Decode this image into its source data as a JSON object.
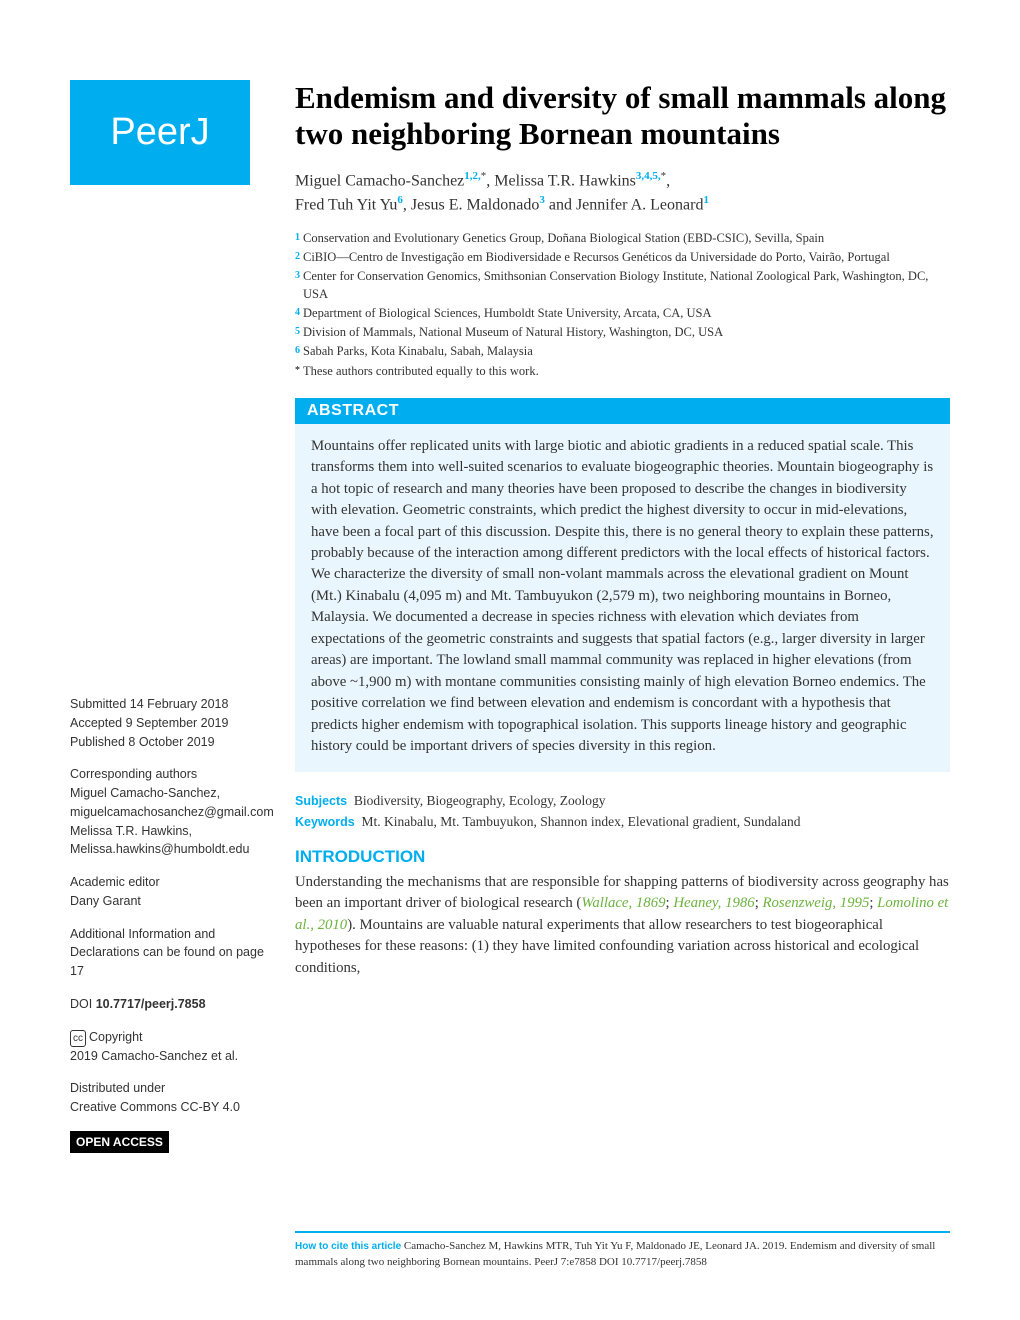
{
  "logo_text": "PeerJ",
  "title": "Endemism and diversity of small mammals along two neighboring Bornean mountains",
  "authors": [
    {
      "name": "Miguel Camacho-Sanchez",
      "sup": "1,2,",
      "star": true,
      "trailing": ", "
    },
    {
      "name": "Melissa T.R. Hawkins",
      "sup": "3,4,5,",
      "star": true,
      "trailing": ","
    },
    {
      "name": "Fred Tuh Yit Yu",
      "sup": "6",
      "star": false,
      "trailing": ", "
    },
    {
      "name": "Jesus E. Maldonado",
      "sup": "3",
      "star": false,
      "trailing": " and "
    },
    {
      "name": "Jennifer A. Leonard",
      "sup": "1",
      "star": false,
      "trailing": ""
    }
  ],
  "affiliations": [
    {
      "num": "1",
      "text": "Conservation and Evolutionary Genetics Group, Doñana Biological Station (EBD-CSIC), Sevilla, Spain"
    },
    {
      "num": "2",
      "text": "CiBIO—Centro de Investigação em Biodiversidade e Recursos Genéticos da Universidade do Porto, Vairão, Portugal"
    },
    {
      "num": "3",
      "text": "Center for Conservation Genomics, Smithsonian Conservation Biology Institute, National Zoological Park, Washington, DC, USA"
    },
    {
      "num": "4",
      "text": "Department of Biological Sciences, Humboldt State University, Arcata, CA, USA"
    },
    {
      "num": "5",
      "text": "Division of Mammals, National Museum of Natural History, Washington, DC, USA"
    },
    {
      "num": "6",
      "text": "Sabah Parks, Kota Kinabalu, Sabah, Malaysia"
    },
    {
      "num": "*",
      "text": "These authors contributed equally to this work."
    }
  ],
  "abstract_label": "ABSTRACT",
  "abstract_text": "Mountains offer replicated units with large biotic and abiotic gradients in a reduced spatial scale. This transforms them into well-suited scenarios to evaluate biogeographic theories. Mountain biogeography is a hot topic of research and many theories have been proposed to describe the changes in biodiversity with elevation. Geometric constraints, which predict the highest diversity to occur in mid-elevations, have been a focal part of this discussion. Despite this, there is no general theory to explain these patterns, probably because of the interaction among different predictors with the local effects of historical factors. We characterize the diversity of small non-volant mammals across the elevational gradient on Mount (Mt.) Kinabalu (4,095 m) and Mt. Tambuyukon (2,579 m), two neighboring mountains in Borneo, Malaysia. We documented a decrease in species richness with elevation which deviates from expectations of the geometric constraints and suggests that spatial factors (e.g., larger diversity in larger areas) are important. The lowland small mammal community was replaced in higher elevations (from above ~1,900 m) with montane communities consisting mainly of high elevation Borneo endemics. The positive correlation we find between elevation and endemism is concordant with a hypothesis that predicts higher endemism with topographical isolation. This supports lineage history and geographic history could be important drivers of species diversity in this region.",
  "subjects_label": "Subjects",
  "subjects_text": "Biodiversity, Biogeography, Ecology, Zoology",
  "keywords_label": "Keywords",
  "keywords_text": "Mt. Kinabalu, Mt. Tambuyukon, Shannon index, Elevational gradient, Sundaland",
  "intro_label": "INTRODUCTION",
  "intro": {
    "pre": "Understanding the mechanisms that are responsible for shapping patterns of biodiversity across geography has been an important driver of biological research (",
    "refs": [
      "Wallace, 1869",
      "Heaney, 1986",
      "Rosenzweig, 1995",
      "Lomolino et al., 2010"
    ],
    "post": "). Mountains are valuable natural experiments that allow researchers to test biogeoraphical hypotheses for these reasons: (1) they have limited confounding variation across historical and ecological conditions,"
  },
  "sidebar": {
    "submitted_label": "Submitted",
    "submitted_date": "14 February 2018",
    "accepted_label": "Accepted",
    "accepted_date": "9 September 2019",
    "published_label": "Published",
    "published_date": "8 October 2019",
    "corresponding_label": "Corresponding authors",
    "corr1_name": "Miguel Camacho-Sanchez,",
    "corr1_email": "miguelcamachosanchez@gmail.com",
    "corr2_name": "Melissa T.R. Hawkins,",
    "corr2_email": "Melissa.hawkins@humboldt.edu",
    "editor_label": "Academic editor",
    "editor_name": "Dany Garant",
    "additional_label": "Additional Information and Declarations can be found on page 17",
    "doi_label": "DOI",
    "doi_value": "10.7717/peerj.7858",
    "copyright_label": "Copyright",
    "copyright_text": "2019 Camacho-Sanchez et al.",
    "distributed_label": "Distributed under",
    "distributed_text": "Creative Commons CC-BY 4.0",
    "open_access": "OPEN ACCESS"
  },
  "citation": {
    "label": "How to cite this article",
    "text": "Camacho-Sanchez M, Hawkins MTR, Tuh Yit Yu F, Maldonado JE, Leonard JA. 2019. Endemism and diversity of small mammals along two neighboring Bornean mountains. PeerJ 7:e7858 DOI 10.7717/peerj.7858"
  },
  "colors": {
    "brand_blue": "#00aeef",
    "abstract_bg": "#eaf6fd",
    "ref_green": "#6cb33f",
    "text": "#333333"
  }
}
